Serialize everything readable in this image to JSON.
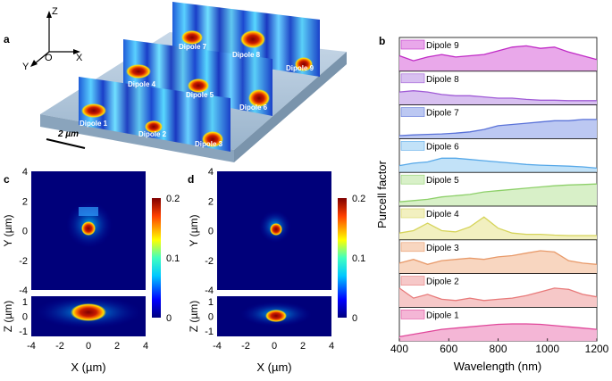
{
  "panel_a": {
    "label": "a",
    "axes": {
      "z": "Z",
      "x": "X",
      "y": "Y",
      "origin": "O"
    },
    "scale_bar": "2 µm",
    "dipoles": [
      "Dipole 1",
      "Dipole 2",
      "Dipole 3",
      "Dipole 4",
      "Dipole 5",
      "Dipole 6",
      "Dipole 7",
      "Dipole 8",
      "Dipole 9"
    ]
  },
  "panel_b": {
    "label": "b",
    "ylabel": "Purcell factor",
    "xlabel": "Wavelength (nm)",
    "xticks": [
      "400",
      "600",
      "800",
      "1000",
      "1200"
    ],
    "rows": [
      {
        "name": "Dipole 9",
        "color": "#c02bc6",
        "fill": "#e9a8ea"
      },
      {
        "name": "Dipole 8",
        "color": "#a05bd6",
        "fill": "#d8c0f0"
      },
      {
        "name": "Dipole 7",
        "color": "#5a72d8",
        "fill": "#bcc8f2"
      },
      {
        "name": "Dipole 6",
        "color": "#56a8e8",
        "fill": "#c2e2f8"
      },
      {
        "name": "Dipole 5",
        "color": "#8ed06a",
        "fill": "#d8f0c8"
      },
      {
        "name": "Dipole 4",
        "color": "#d6d45a",
        "fill": "#f2f0c0"
      },
      {
        "name": "Dipole 3",
        "color": "#e89a6a",
        "fill": "#f8d6c0"
      },
      {
        "name": "Dipole 2",
        "color": "#e87a7a",
        "fill": "#f6c8c8"
      },
      {
        "name": "Dipole 1",
        "color": "#e0479a",
        "fill": "#f4b6d6"
      }
    ]
  },
  "panel_c": {
    "label": "c",
    "ylabel_top": "Y (µm)",
    "ylabel_bottom": "Z (µm)",
    "xlabel": "X (µm)",
    "yticks_top": [
      "4",
      "2",
      "0",
      "-2",
      "-4"
    ],
    "yticks_bottom": [
      "1",
      "0",
      "-1"
    ],
    "xticks": [
      "-4",
      "-2",
      "0",
      "2",
      "4"
    ],
    "colorbar_ticks": [
      "0.2",
      "0.1",
      "0"
    ]
  },
  "panel_d": {
    "label": "d",
    "ylabel_top": "Y (µm)",
    "ylabel_bottom": "Z (µm)",
    "xlabel": "X (µm)",
    "yticks_top": [
      "4",
      "2",
      "0",
      "-2",
      "-4"
    ],
    "yticks_bottom": [
      "1",
      "0",
      "-1"
    ],
    "xticks": [
      "-4",
      "-2",
      "0",
      "2",
      "4"
    ],
    "colorbar_ticks": [
      "0.2",
      "0.1",
      "0"
    ]
  }
}
